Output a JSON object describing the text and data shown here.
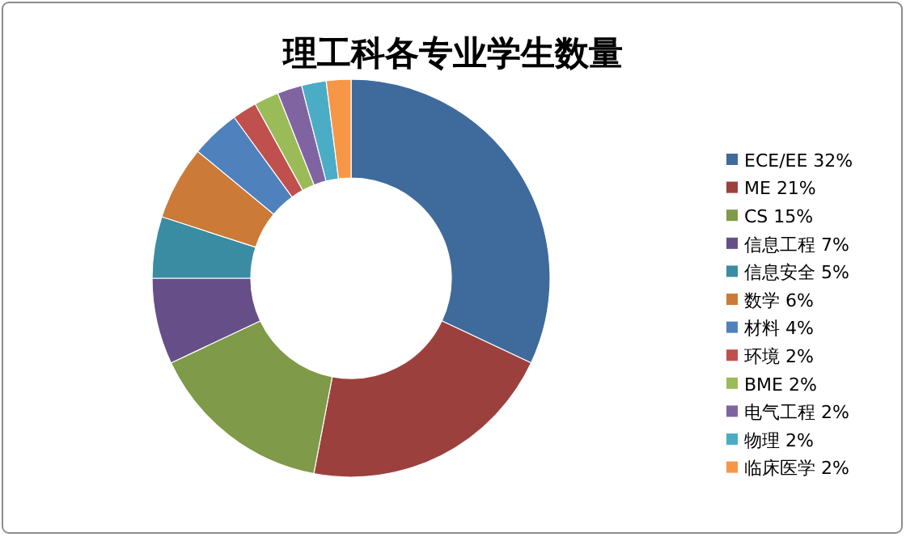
{
  "chart_data": {
    "type": "donut",
    "title": "理工科各专业学生数量",
    "categories": [
      "ECE/EE 32%",
      "ME 21%",
      "CS 15%",
      "信息工程 7%",
      "信息安全 5%",
      "数学 6%",
      "材料 4%",
      "环境 2%",
      "BME 2%",
      "电气工程 2%",
      "物理 2%",
      "临床医学 2%"
    ],
    "values": [
      32,
      21,
      15,
      7,
      5,
      6,
      4,
      2,
      2,
      2,
      2,
      2
    ],
    "colors": [
      "#3f6a9c",
      "#9c403e",
      "#7f9a48",
      "#664f88",
      "#3a8ca2",
      "#cb7a38",
      "#4f81bd",
      "#c0504d",
      "#9bbb59",
      "#8064a2",
      "#4bacc6",
      "#f79646"
    ],
    "legend": "right"
  }
}
